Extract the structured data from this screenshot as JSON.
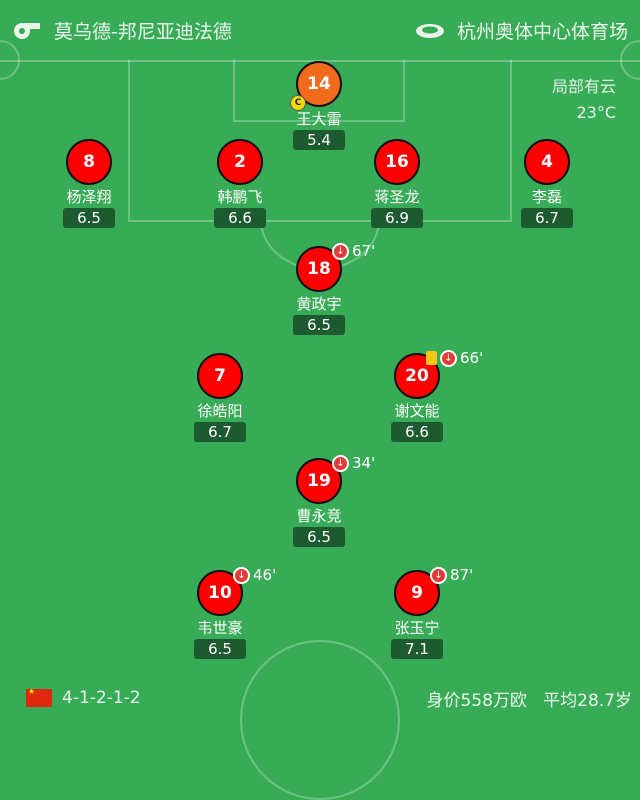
{
  "header": {
    "referee_icon": "whistle-icon",
    "referee": "莫乌德-邦尼亚迪法德",
    "stadium_icon": "stadium-icon",
    "stadium": "杭州奥体中心体育场"
  },
  "weather": {
    "condition": "局部有云",
    "temperature": "23°C"
  },
  "players": [
    {
      "number": "14",
      "name": "王大雷",
      "rating": "5.4",
      "captain": "C",
      "color": "#f26a1b"
    },
    {
      "number": "8",
      "name": "杨泽翔",
      "rating": "6.5"
    },
    {
      "number": "2",
      "name": "韩鹏飞",
      "rating": "6.6"
    },
    {
      "number": "16",
      "name": "蒋圣龙",
      "rating": "6.9"
    },
    {
      "number": "4",
      "name": "李磊",
      "rating": "6.7"
    },
    {
      "number": "18",
      "name": "黄政宇",
      "rating": "6.5",
      "sub": "67'"
    },
    {
      "number": "7",
      "name": "徐皓阳",
      "rating": "6.7"
    },
    {
      "number": "20",
      "name": "谢文能",
      "rating": "6.6",
      "sub": "66'",
      "yellow_card": true
    },
    {
      "number": "19",
      "name": "曹永竞",
      "rating": "6.5",
      "sub": "34'"
    },
    {
      "number": "10",
      "name": "韦世豪",
      "rating": "6.5",
      "sub": "46'"
    },
    {
      "number": "9",
      "name": "张玉宁",
      "rating": "7.1",
      "sub": "87'"
    }
  ],
  "footer": {
    "flag": "china-flag",
    "formation": "4-1-2-1-2",
    "value": "身价558万欧",
    "avg_age": "平均28.7岁"
  },
  "colors": {
    "pitch": "#37ab55",
    "player": "#ff0000",
    "goalkeeper": "#f26a1b",
    "rating_bg": "#1e5a30",
    "yellow_card": "#f5c518"
  }
}
